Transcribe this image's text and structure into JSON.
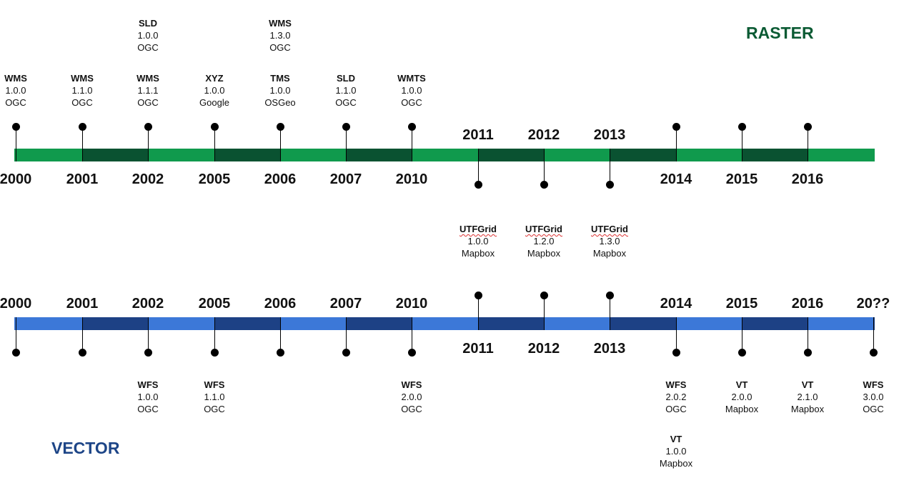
{
  "raster": {
    "title": "RASTER",
    "title_color": "#0a5a33",
    "bar_light": "#109a4d",
    "bar_dark": "#0a5231",
    "years": [
      "2000",
      "2001",
      "2002",
      "2005",
      "2006",
      "2007",
      "2010",
      "2011",
      "2012",
      "2013",
      "2014",
      "2015",
      "2016"
    ],
    "specs": [
      {
        "name": "WMS",
        "version": "1.0.0",
        "org": "OGC",
        "tick": 0,
        "side": "above"
      },
      {
        "name": "WMS",
        "version": "1.1.0",
        "org": "OGC",
        "tick": 1,
        "side": "above"
      },
      {
        "name": "WMS",
        "version": "1.1.1",
        "org": "OGC",
        "tick": 2,
        "side": "above"
      },
      {
        "name": "SLD",
        "version": "1.0.0",
        "org": "OGC",
        "tick": 2,
        "side": "above",
        "stack": 1
      },
      {
        "name": "XYZ",
        "version": "1.0.0",
        "org": "Google",
        "tick": 3,
        "side": "above"
      },
      {
        "name": "TMS",
        "version": "1.0.0",
        "org": "OSGeo",
        "tick": 4,
        "side": "above"
      },
      {
        "name": "WMS",
        "version": "1.3.0",
        "org": "OGC",
        "tick": 4,
        "side": "above",
        "stack": 1
      },
      {
        "name": "SLD",
        "version": "1.1.0",
        "org": "OGC",
        "tick": 5,
        "side": "above"
      },
      {
        "name": "WMTS",
        "version": "1.0.0",
        "org": "OGC",
        "tick": 6,
        "side": "above"
      },
      {
        "name": "UTFGrid",
        "version": "1.0.0",
        "org": "Mapbox",
        "tick": 7,
        "side": "below",
        "squiggle": true
      },
      {
        "name": "UTFGrid",
        "version": "1.2.0",
        "org": "Mapbox",
        "tick": 8,
        "side": "below",
        "squiggle": true
      },
      {
        "name": "UTFGrid",
        "version": "1.3.0",
        "org": "Mapbox",
        "tick": 9,
        "side": "below",
        "squiggle": true
      }
    ],
    "empty_ticks": [
      10,
      11,
      12
    ]
  },
  "vector": {
    "title": "VECTOR",
    "title_color": "#1d4587",
    "bar_light": "#3c78d8",
    "bar_dark": "#1d4185",
    "years": [
      "2000",
      "2001",
      "2002",
      "2005",
      "2006",
      "2007",
      "2010",
      "2011",
      "2012",
      "2013",
      "2014",
      "2015",
      "2016",
      "20??"
    ],
    "specs": [
      {
        "name": "WFS",
        "version": "1.0.0",
        "org": "OGC",
        "tick": 2,
        "side": "below"
      },
      {
        "name": "WFS",
        "version": "1.1.0",
        "org": "OGC",
        "tick": 3,
        "side": "below"
      },
      {
        "name": "WFS",
        "version": "2.0.0",
        "org": "OGC",
        "tick": 6,
        "side": "below"
      },
      {
        "name": "WFS",
        "version": "2.0.2",
        "org": "OGC",
        "tick": 10,
        "side": "below"
      },
      {
        "name": "VT",
        "version": "1.0.0",
        "org": "Mapbox",
        "tick": 10,
        "side": "below",
        "stack": 1
      },
      {
        "name": "VT",
        "version": "2.0.0",
        "org": "Mapbox",
        "tick": 11,
        "side": "below"
      },
      {
        "name": "VT",
        "version": "2.1.0",
        "org": "Mapbox",
        "tick": 12,
        "side": "below"
      },
      {
        "name": "WFS",
        "version": "3.0.0",
        "org": "OGC",
        "tick": 13,
        "side": "below"
      }
    ]
  }
}
